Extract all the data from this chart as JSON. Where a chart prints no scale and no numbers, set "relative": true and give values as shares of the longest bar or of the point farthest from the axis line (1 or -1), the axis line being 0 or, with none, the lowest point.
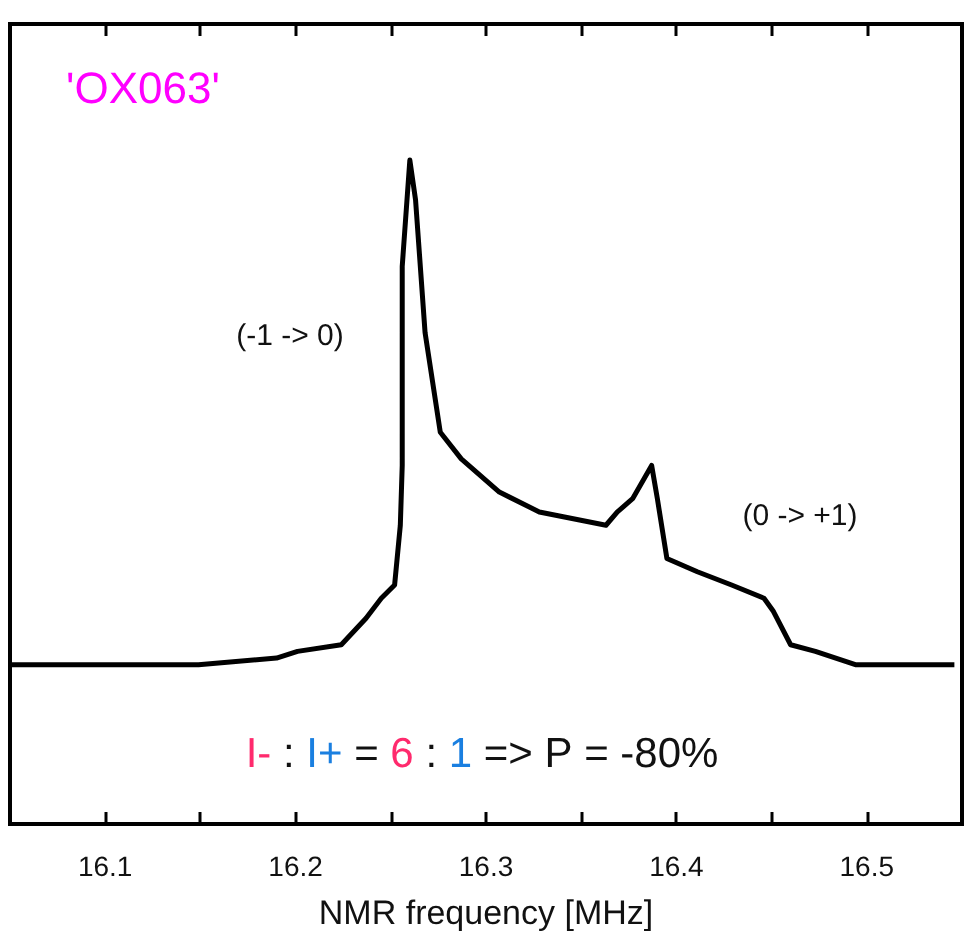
{
  "chart_data": {
    "type": "line",
    "title": "'OX063'",
    "xlabel": "NMR frequency [MHz]",
    "relative": true,
    "x": [
      16.05,
      16.149,
      16.19,
      16.201,
      16.224,
      16.237,
      16.245,
      16.252,
      16.255,
      16.256,
      16.256,
      16.26,
      16.263,
      16.268,
      16.276,
      16.287,
      16.307,
      16.328,
      16.363,
      16.369,
      16.377,
      16.387,
      16.39,
      16.395,
      16.411,
      16.429,
      16.446,
      16.451,
      16.46,
      16.473,
      16.494,
      16.546
    ],
    "series": [
      {
        "color": "#000000",
        "values": [
          0.24,
          0.24,
          0.25,
          0.26,
          0.27,
          0.31,
          0.34,
          0.36,
          0.45,
          0.54,
          0.84,
          1.0,
          0.94,
          0.74,
          0.59,
          0.55,
          0.5,
          0.47,
          0.45,
          0.47,
          0.49,
          0.54,
          0.49,
          0.4,
          0.38,
          0.36,
          0.34,
          0.32,
          0.27,
          0.26,
          0.24,
          0.24
        ]
      }
    ],
    "xlim": [
      16.05,
      16.55
    ],
    "xticks": [
      16.1,
      {
        "value": 16.15,
        "label": null
      },
      16.2,
      {
        "value": 16.25,
        "label": null
      },
      16.3,
      {
        "value": 16.35,
        "label": null
      },
      16.4,
      {
        "value": 16.45,
        "label": null
      },
      16.5
    ],
    "annotations": [
      "(-1 -> 0)",
      "(0 -> +1)",
      "I- : I+ = 6 : 1 => P = -80%"
    ],
    "grid": false,
    "marker": "none",
    "line_style": "solid"
  }
}
